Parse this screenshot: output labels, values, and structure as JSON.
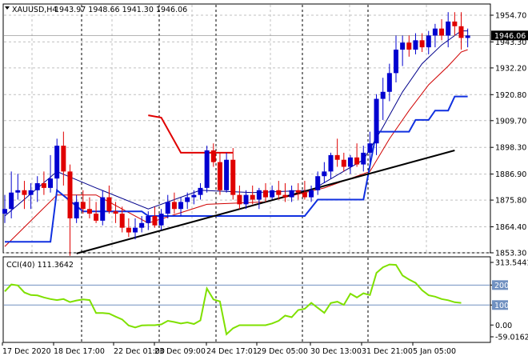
{
  "header": {
    "symbol_timeframe": "XAUUSD,H4",
    "ohlc": "1943.97 1948.66 1941.30 1946.06"
  },
  "price_axis": {
    "ticks": [
      "1954.70",
      "1943.30",
      "1932.20",
      "1920.80",
      "1909.70",
      "1898.30",
      "1886.90",
      "1875.80",
      "1864.40",
      "1853.30"
    ],
    "current_price_label": "1946.06"
  },
  "cci_panel": {
    "label": "CCI(40) 111.3642",
    "ticks": [
      "313.5441",
      "200",
      "100",
      "0.00",
      "-59.0162"
    ]
  },
  "time_axis": {
    "labels": [
      "17 Dec 2020",
      "18 Dec 17:00",
      "22 Dec 01:00",
      "23 Dec 09:00",
      "24 Dec 17:01",
      "29 Dec 05:00",
      "30 Dec 13:00",
      "31 Dec 21:00",
      "5 Jan 05:00"
    ]
  },
  "colors": {
    "bull_candle": "#0000d0",
    "bear_candle": "#e00000",
    "fast_ma": "#00008b",
    "slow_ma": "#d00000",
    "trailing_stop_up": "#1030e0",
    "trailing_stop_down": "#e00000",
    "trendline": "#000000",
    "cci_line": "#7fe000",
    "level_line": "#7090c0",
    "current_price_tag": "#000000"
  },
  "chart_data": [
    {
      "type": "candlestick",
      "title": "XAUUSD,H4",
      "price_range": [
        1853.3,
        1954.7
      ],
      "bars": [
        [
          1870,
          1878,
          1866,
          1872
        ],
        [
          1872,
          1888,
          1868,
          1879
        ],
        [
          1879,
          1887,
          1876,
          1880
        ],
        [
          1880,
          1884,
          1872,
          1878
        ],
        [
          1878,
          1883,
          1872,
          1880
        ],
        [
          1880,
          1886,
          1875,
          1883
        ],
        [
          1883,
          1888,
          1878,
          1881
        ],
        [
          1881,
          1895,
          1879,
          1885
        ],
        [
          1885,
          1902,
          1880,
          1899
        ],
        [
          1899,
          1905,
          1882,
          1888
        ],
        [
          1888,
          1891,
          1852,
          1868
        ],
        [
          1868,
          1878,
          1866,
          1875
        ],
        [
          1875,
          1880,
          1870,
          1872
        ],
        [
          1872,
          1877,
          1868,
          1870
        ],
        [
          1870,
          1875,
          1866,
          1867
        ],
        [
          1867,
          1880,
          1865,
          1877
        ],
        [
          1877,
          1882,
          1870,
          1871
        ],
        [
          1871,
          1875,
          1866,
          1870
        ],
        [
          1870,
          1873,
          1862,
          1864
        ],
        [
          1864,
          1868,
          1860,
          1862
        ],
        [
          1862,
          1868,
          1859,
          1864
        ],
        [
          1864,
          1869,
          1862,
          1866
        ],
        [
          1866,
          1871,
          1863,
          1869
        ],
        [
          1869,
          1873,
          1864,
          1865
        ],
        [
          1865,
          1872,
          1863,
          1870
        ],
        [
          1870,
          1878,
          1868,
          1875
        ],
        [
          1875,
          1879,
          1870,
          1872
        ],
        [
          1872,
          1877,
          1869,
          1875
        ],
        [
          1875,
          1879,
          1872,
          1877
        ],
        [
          1877,
          1880,
          1874,
          1878
        ],
        [
          1878,
          1883,
          1876,
          1881
        ],
        [
          1881,
          1899,
          1879,
          1897
        ],
        [
          1897,
          1900,
          1890,
          1892
        ],
        [
          1892,
          1896,
          1878,
          1880
        ],
        [
          1880,
          1896,
          1879,
          1893
        ],
        [
          1893,
          1898,
          1876,
          1878
        ],
        [
          1878,
          1882,
          1872,
          1874
        ],
        [
          1874,
          1880,
          1872,
          1878
        ],
        [
          1878,
          1882,
          1874,
          1876
        ],
        [
          1876,
          1881,
          1872,
          1880
        ],
        [
          1880,
          1883,
          1875,
          1877
        ],
        [
          1877,
          1882,
          1876,
          1880
        ],
        [
          1880,
          1884,
          1876,
          1878
        ],
        [
          1878,
          1883,
          1875,
          1877
        ],
        [
          1877,
          1882,
          1875,
          1880
        ],
        [
          1880,
          1883,
          1876,
          1879
        ],
        [
          1879,
          1884,
          1876,
          1877
        ],
        [
          1877,
          1882,
          1875,
          1880
        ],
        [
          1880,
          1888,
          1878,
          1886
        ],
        [
          1886,
          1892,
          1883,
          1888
        ],
        [
          1888,
          1896,
          1885,
          1895
        ],
        [
          1895,
          1902,
          1890,
          1893
        ],
        [
          1893,
          1896,
          1888,
          1890
        ],
        [
          1890,
          1895,
          1887,
          1894
        ],
        [
          1894,
          1900,
          1890,
          1891
        ],
        [
          1891,
          1899,
          1888,
          1896
        ],
        [
          1896,
          1905,
          1892,
          1900
        ],
        [
          1900,
          1921,
          1895,
          1919
        ],
        [
          1919,
          1928,
          1910,
          1922
        ],
        [
          1922,
          1934,
          1918,
          1930
        ],
        [
          1930,
          1946,
          1926,
          1940
        ],
        [
          1940,
          1946,
          1933,
          1943
        ],
        [
          1943,
          1946,
          1937,
          1940
        ],
        [
          1940,
          1947,
          1938,
          1944
        ],
        [
          1944,
          1947,
          1939,
          1941
        ],
        [
          1941,
          1948,
          1938,
          1946
        ],
        [
          1946,
          1951,
          1941,
          1949
        ],
        [
          1949,
          1953,
          1944,
          1946
        ],
        [
          1946,
          1956,
          1941,
          1952
        ],
        [
          1952,
          1956,
          1946,
          1950
        ],
        [
          1950,
          1956,
          1940,
          1945
        ],
        [
          1945,
          1949,
          1941,
          1946
        ]
      ],
      "fast_ma": [
        [
          0,
          1869
        ],
        [
          8,
          1888
        ],
        [
          14,
          1881
        ],
        [
          22,
          1872
        ],
        [
          30,
          1880
        ],
        [
          38,
          1879
        ],
        [
          47,
          1880
        ],
        [
          55,
          1893
        ],
        [
          58,
          1907
        ],
        [
          61,
          1922
        ],
        [
          64,
          1934
        ],
        [
          67,
          1942
        ],
        [
          70,
          1948
        ],
        [
          71,
          1948
        ]
      ],
      "slow_ma": [
        [
          0,
          1856
        ],
        [
          8,
          1878
        ],
        [
          14,
          1878
        ],
        [
          22,
          1866
        ],
        [
          31,
          1874
        ],
        [
          40,
          1875
        ],
        [
          49,
          1881
        ],
        [
          56,
          1888
        ],
        [
          59,
          1902
        ],
        [
          62,
          1914
        ],
        [
          65,
          1925
        ],
        [
          68,
          1933
        ],
        [
          70,
          1939
        ],
        [
          71,
          1940
        ]
      ],
      "trailing_stop_up": [
        [
          0,
          1858
        ],
        [
          7,
          1858
        ],
        [
          8,
          1880
        ],
        [
          12,
          1871
        ],
        [
          21,
          1871
        ],
        [
          22,
          1869
        ],
        [
          38,
          1869
        ],
        [
          39,
          1869
        ],
        [
          46,
          1869
        ],
        [
          48,
          1876
        ],
        [
          55,
          1876
        ],
        [
          57,
          1905
        ],
        [
          62,
          1905
        ],
        [
          63,
          1910
        ],
        [
          65,
          1910
        ],
        [
          66,
          1914
        ],
        [
          68,
          1914
        ],
        [
          69,
          1920
        ],
        [
          71,
          1920
        ]
      ],
      "trailing_stop_down": [
        [
          22,
          1912
        ],
        [
          24,
          1911
        ],
        [
          27,
          1896
        ],
        [
          35,
          1896
        ]
      ],
      "trendline": [
        [
          11,
          1853
        ],
        [
          69,
          1897
        ]
      ]
    },
    {
      "type": "line",
      "title": "CCI(40) 111.3642",
      "ylim": [
        -59.0162,
        313.5441
      ],
      "levels": [
        200,
        100
      ],
      "values": [
        168,
        203,
        198,
        163,
        150,
        148,
        138,
        130,
        125,
        130,
        115,
        123,
        128,
        125,
        60,
        60,
        57,
        42,
        28,
        -2,
        -12,
        -2,
        -1,
        -1,
        3,
        21,
        15,
        8,
        13,
        5,
        23,
        183,
        128,
        118,
        -46,
        -16,
        -1,
        -1,
        -1,
        -1,
        -1,
        8,
        21,
        47,
        39,
        75,
        81,
        111,
        86,
        61,
        110,
        117,
        101,
        157,
        138,
        159,
        150,
        261,
        289,
        303,
        301,
        248,
        228,
        211,
        174,
        149,
        142,
        130,
        124,
        114,
        111
      ]
    }
  ]
}
